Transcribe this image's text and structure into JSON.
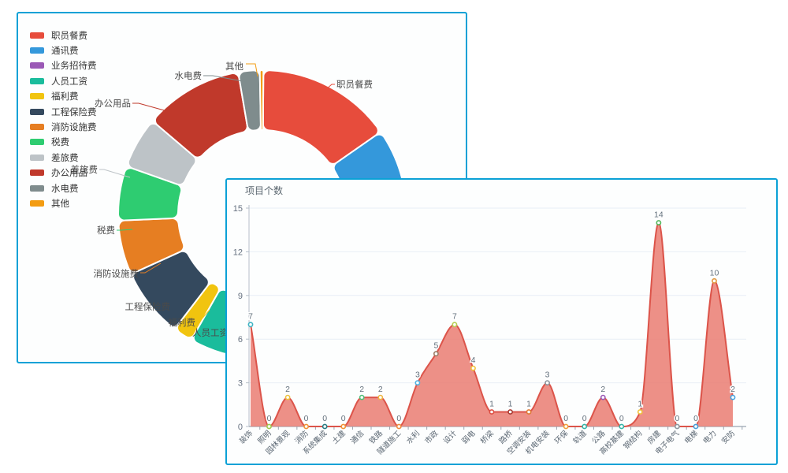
{
  "colors": {
    "panel_border": "#0ba1d6",
    "panel_bg": "#fdfefe",
    "grid_line": "#e8eef5",
    "x_axis": "#9aa5b1",
    "y_axis": "#b6bfc9",
    "tick_label": "#667180",
    "value_label": "#62707c",
    "pie_label_text": "#4a4a4a"
  },
  "chart_data": [
    {
      "type": "pie",
      "subtype": "donut",
      "labels": [
        "职员餐费",
        "通讯费",
        "业务招待费",
        "人员工资",
        "福利费",
        "工程保险费",
        "消防设施费",
        "税费",
        "差旅费",
        "办公用品",
        "水电费",
        "其他"
      ],
      "colors": [
        "#e74c3c",
        "#3498db",
        "#9b59b6",
        "#1abc9c",
        "#f1c40f",
        "#34495e",
        "#e67e22",
        "#2ecc71",
        "#bdc3c7",
        "#c0392b",
        "#7f8c8d",
        "#f39c12"
      ],
      "values_pct_est": [
        15.2,
        12.5,
        12.4,
        18.0,
        2.2,
        7.8,
        6.1,
        6.1,
        5.8,
        11.1,
        2.4,
        0.4
      ],
      "legend_position": "left",
      "callout_labels_visible": [
        "职员餐费",
        "其他",
        "水电费",
        "办公用品",
        "差旅费",
        "税费",
        "消防设施费",
        "工程保险费",
        "福利费",
        "人员工资"
      ]
    },
    {
      "type": "area",
      "title": "项目个数",
      "categories": [
        "装饰",
        "照明",
        "园林景观",
        "消防",
        "系统集成",
        "土建",
        "通信",
        "铁路",
        "隧道施工",
        "水利",
        "市政",
        "设计",
        "弱电",
        "桥梁",
        "路桥",
        "空调安装",
        "机电安装",
        "环保",
        "轨道",
        "公路",
        "高校基建",
        "钢结构",
        "房建",
        "电子电气",
        "电梯",
        "电力",
        "安防"
      ],
      "values": [
        7,
        0,
        2,
        0,
        0,
        0,
        2,
        2,
        0,
        3,
        5,
        7,
        4,
        1,
        1,
        1,
        3,
        0,
        0,
        2,
        0,
        1,
        14,
        0,
        0,
        10,
        2
      ],
      "ylim": [
        0,
        15
      ],
      "yticks": [
        0,
        3,
        6,
        9,
        12,
        15
      ],
      "grid": true,
      "smooth": true,
      "line_color": "#dc544a",
      "fill_color": "#ea8176",
      "fill_opacity": 0.88,
      "marker_colors": [
        "#3fb3c3",
        "#a0c94e",
        "#edc23d",
        "#ef9335",
        "#2d7f86",
        "#ef9335",
        "#52c07a",
        "#eeb540",
        "#ef8a3e",
        "#4fb2e3",
        "#9b7c65",
        "#b6cf4f",
        "#f0c23c",
        "#dd5044",
        "#a93a32",
        "#e07b35",
        "#8d979e",
        "#f0a03c",
        "#37b5a8",
        "#9b59b6",
        "#37b5a8",
        "#f0c23c",
        "#52b85c",
        "#8d979e",
        "#4a9fd8",
        "#e2993f",
        "#4aa3df"
      ]
    }
  ]
}
